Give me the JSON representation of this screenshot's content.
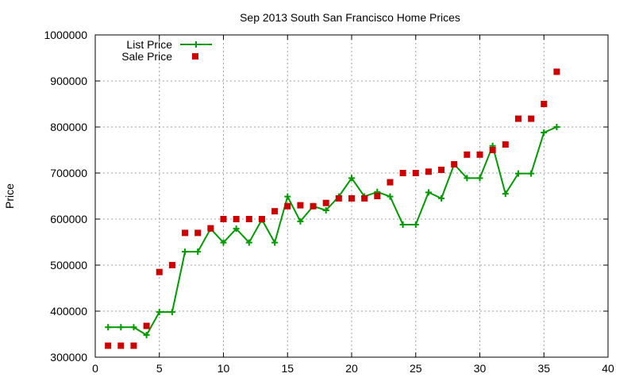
{
  "chart_data": {
    "type": "scatter",
    "title": "Sep 2013 South San Francisco Home Prices",
    "xlabel": "",
    "ylabel": "Price",
    "xlim": [
      0,
      40
    ],
    "ylim": [
      300000,
      1000000
    ],
    "xticks": [
      0,
      5,
      10,
      15,
      20,
      25,
      30,
      35,
      40
    ],
    "yticks": [
      300000,
      400000,
      500000,
      600000,
      700000,
      800000,
      900000,
      1000000
    ],
    "grid": true,
    "legend_position": "top-left",
    "series": [
      {
        "name": "List Price",
        "style": "line-plus",
        "color": "#009900",
        "x": [
          1,
          2,
          3,
          4,
          5,
          6,
          7,
          8,
          9,
          10,
          11,
          12,
          13,
          14,
          15,
          16,
          17,
          18,
          19,
          20,
          21,
          22,
          23,
          24,
          25,
          26,
          27,
          28,
          29,
          30,
          31,
          32,
          33,
          34,
          35,
          36
        ],
        "values": [
          365000,
          365000,
          365000,
          348000,
          398000,
          398000,
          529000,
          529000,
          579000,
          549000,
          579000,
          549000,
          599000,
          549000,
          649000,
          595000,
          628000,
          619000,
          649000,
          689000,
          649000,
          659000,
          649000,
          588000,
          588000,
          658000,
          645000,
          719000,
          689000,
          689000,
          759000,
          655000,
          699000,
          699000,
          788000,
          800000
        ]
      },
      {
        "name": "Sale Price",
        "style": "square-marker",
        "color": "#cc0000",
        "x": [
          1,
          2,
          3,
          4,
          5,
          6,
          7,
          8,
          9,
          10,
          11,
          12,
          13,
          14,
          15,
          16,
          17,
          18,
          19,
          20,
          21,
          22,
          23,
          24,
          25,
          26,
          27,
          28,
          29,
          30,
          31,
          32,
          33,
          34,
          35,
          36
        ],
        "values": [
          325000,
          325000,
          325000,
          368000,
          485000,
          500000,
          570000,
          570000,
          580000,
          600000,
          600000,
          600000,
          600000,
          617000,
          628000,
          630000,
          628000,
          635000,
          645000,
          645000,
          645000,
          650000,
          680000,
          700000,
          700000,
          703000,
          707000,
          719000,
          740000,
          740000,
          750000,
          762000,
          818000,
          818000,
          850000,
          920000
        ]
      }
    ]
  }
}
